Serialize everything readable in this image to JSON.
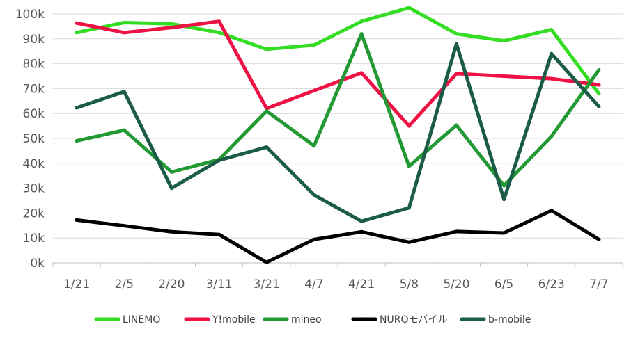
{
  "chart_data": {
    "type": "line",
    "categories": [
      "1/21",
      "2/5",
      "2/20",
      "3/11",
      "3/21",
      "4/7",
      "4/21",
      "5/8",
      "5/20",
      "6/5",
      "6/23",
      "7/7"
    ],
    "ylim": [
      0,
      100000
    ],
    "yticks": [
      0,
      10000,
      20000,
      30000,
      40000,
      50000,
      60000,
      70000,
      80000,
      90000,
      100000
    ],
    "ytick_labels": [
      "0k",
      "10k",
      "20k",
      "30k",
      "40k",
      "50k",
      "60k",
      "70k",
      "80k",
      "90k",
      "100k"
    ],
    "grid": true,
    "legend_position": "bottom",
    "series": [
      {
        "name": "LINEMO",
        "color": "#33dd22",
        "values": [
          92500,
          96500,
          96000,
          92500,
          85800,
          87500,
          97000,
          102500,
          92000,
          89200,
          93700,
          68000
        ]
      },
      {
        "name": "Y!mobile",
        "color": "#ee1144",
        "values": [
          96300,
          92500,
          94500,
          97000,
          62000,
          69200,
          76300,
          55000,
          76000,
          75000,
          74000,
          71500
        ]
      },
      {
        "name": "mineo",
        "color": "#229933",
        "values": [
          49000,
          53300,
          36500,
          41500,
          61000,
          47000,
          92000,
          38800,
          55300,
          31000,
          50800,
          77500
        ]
      },
      {
        "name": "NUROモバイル",
        "color": "#000000",
        "values": [
          17200,
          14900,
          12500,
          11400,
          200,
          9400,
          12500,
          8300,
          12600,
          12000,
          21000,
          9400
        ]
      },
      {
        "name": "b-mobile",
        "color": "#1a5c48",
        "values": [
          62300,
          68800,
          30000,
          41200,
          46500,
          27300,
          16700,
          22100,
          88000,
          25500,
          84000,
          62800
        ]
      }
    ]
  }
}
